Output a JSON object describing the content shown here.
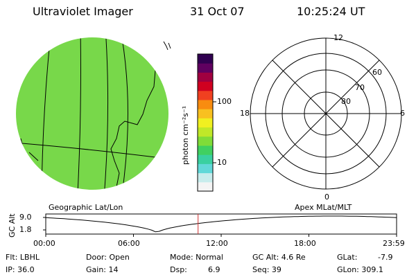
{
  "header": {
    "instrument": "Ultraviolet Imager",
    "date": "31 Oct 07",
    "time": "10:25:24 UT"
  },
  "left_panel": {
    "caption": "Geographic Lat/Lon",
    "fill_color": "#78d84a"
  },
  "colorbar": {
    "unit_label": "photon cm⁻²s⁻¹",
    "ticks": [
      "100",
      "10"
    ],
    "colors": [
      "#f4f4f4",
      "#c8ecec",
      "#62d8d8",
      "#3ad0a0",
      "#40d060",
      "#80dc38",
      "#c0e828",
      "#f0f020",
      "#f8c020",
      "#f88c10",
      "#f04020",
      "#d00020",
      "#a00040",
      "#600060",
      "#300050"
    ]
  },
  "right_panel": {
    "caption": "Apex  MLat/MLT",
    "mlt_labels": {
      "top": "12",
      "left": "18",
      "right": "6",
      "bottom": "0"
    },
    "lat_labels": [
      "60",
      "70",
      "80"
    ]
  },
  "timeline": {
    "axis_label": "GC Alt",
    "y_ticks": [
      "9.0",
      "1.8"
    ],
    "x_ticks": [
      "00:00",
      "06:00",
      "12:00",
      "18:00",
      "23:59"
    ],
    "x_domain_hours": [
      0,
      24
    ],
    "current_time_hours": 10.42,
    "marker_color": "#d03030"
  },
  "footer": {
    "flt": "Flt: LBHL",
    "ip": "IP: 36.0",
    "door": "Door: Open",
    "gain": "Gain: 14",
    "mode": "Mode: Normal",
    "dsp": "Dsp:",
    "dsp_val": "6.9",
    "gcalt": "GC Alt: 4.6 Re",
    "seq": "Seq: 39",
    "glat": "GLat:",
    "glat_val": "-7.9",
    "glon": "GLon: 309.1"
  }
}
